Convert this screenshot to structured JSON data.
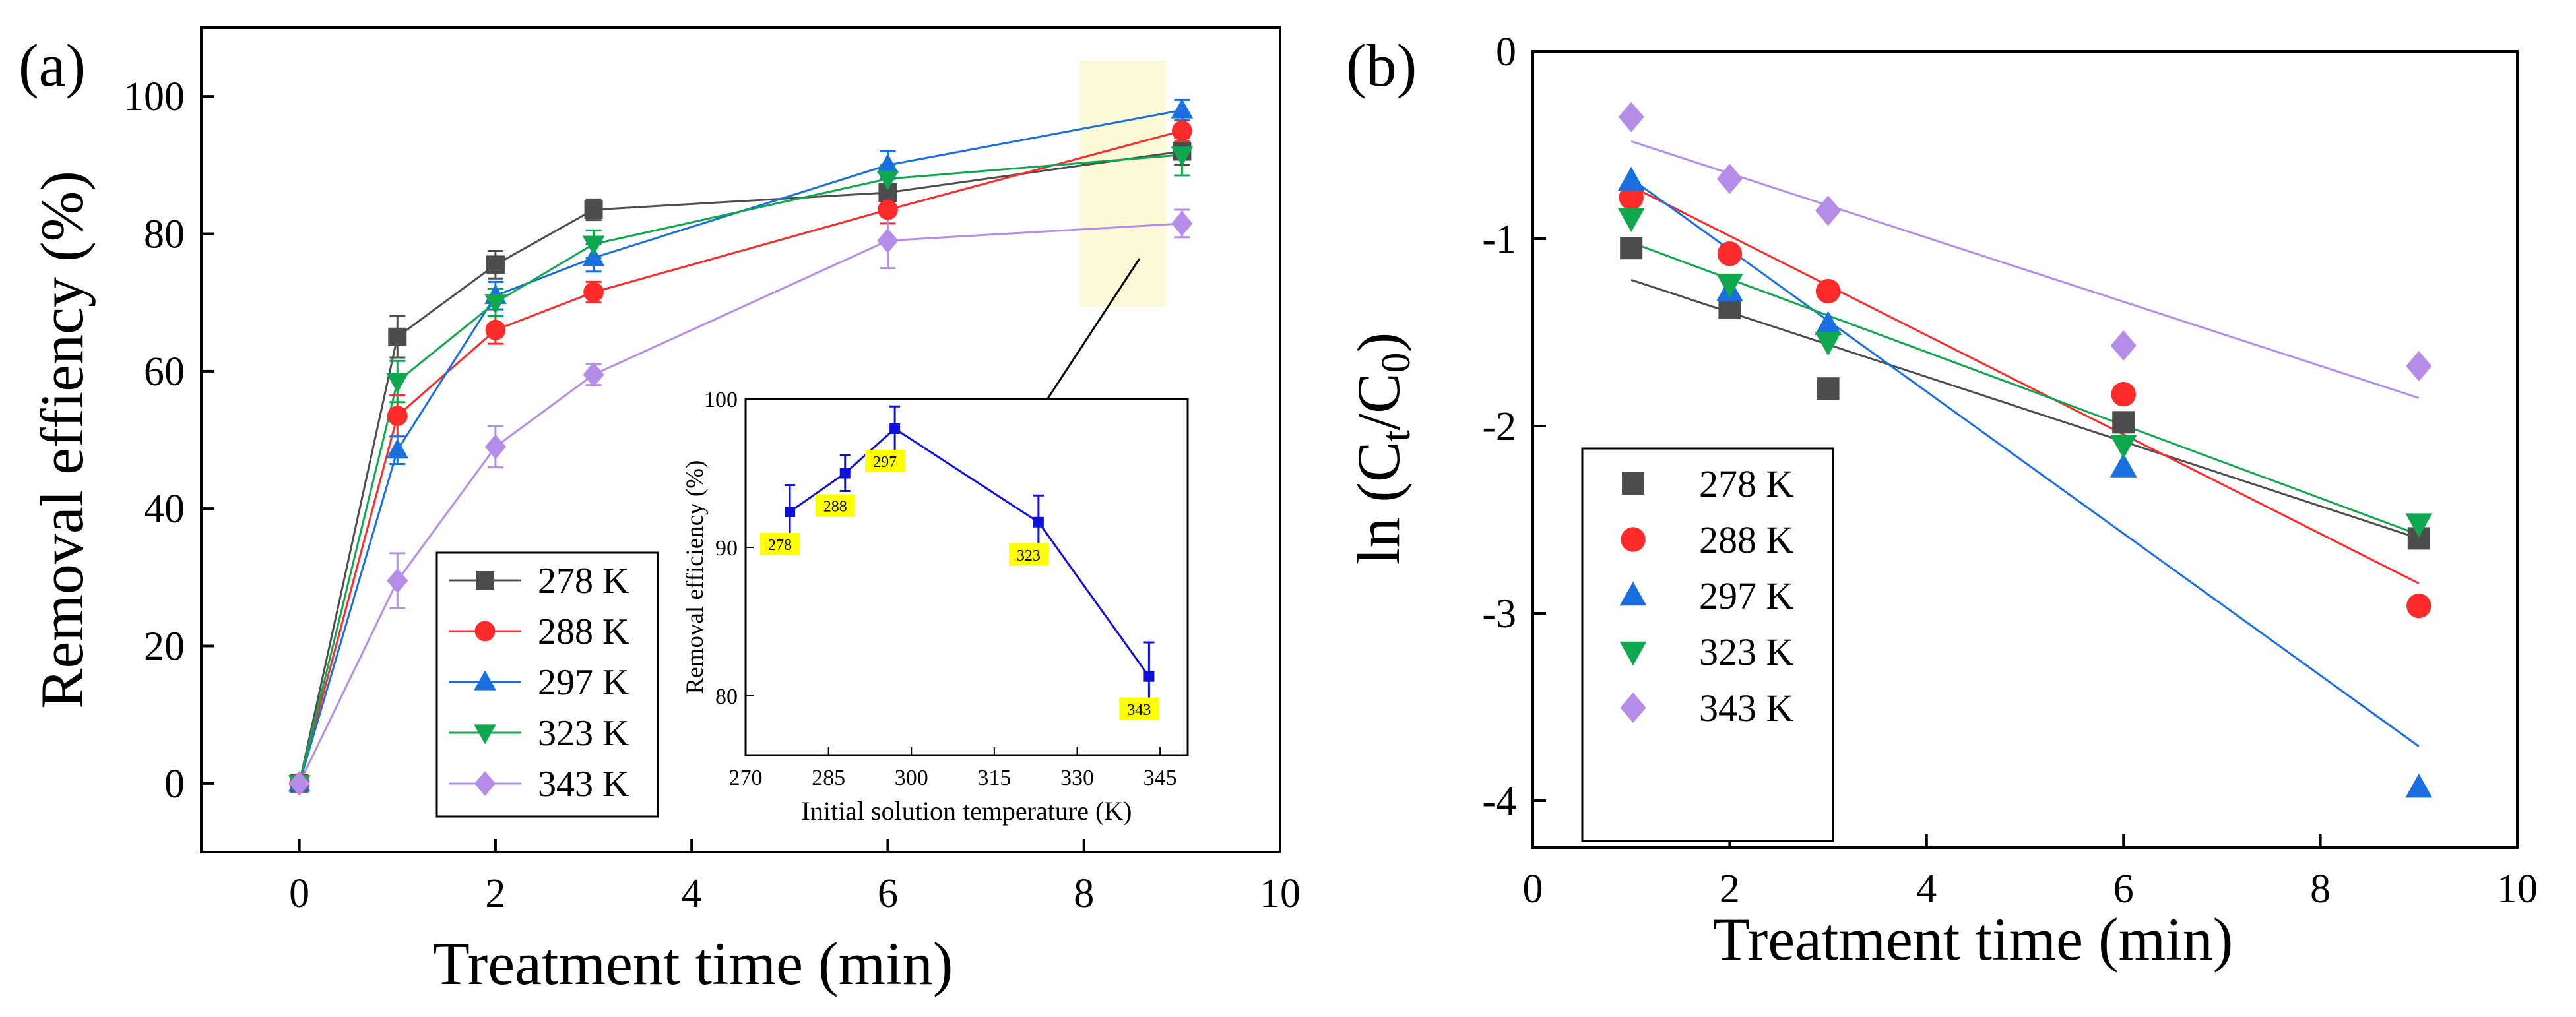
{
  "colors": {
    "278 K": "#4d4d4d",
    "288 K": "#ff2a2a",
    "297 K": "#1a6fe0",
    "323 K": "#0fa84f",
    "343 K": "#b58ce8",
    "inset": "#1010dd",
    "highlight_box": "#fbf7c8",
    "inset_label_bg": "#ffff00"
  },
  "chart_data": [
    {
      "type": "line",
      "panel_label": "(a)",
      "xlabel": "Treatment time (min)",
      "ylabel": "Removal effiency (%)",
      "xlim": [
        -1,
        10
      ],
      "ylim": [
        -10,
        110
      ],
      "xticks": [
        0,
        2,
        4,
        6,
        8,
        10
      ],
      "yticks": [
        0,
        20,
        40,
        60,
        80,
        100
      ],
      "legend_position": "bottom-left",
      "x": [
        0,
        1,
        2,
        3,
        6,
        9
      ],
      "series": [
        {
          "name": "278 K",
          "marker": "square",
          "values": [
            0,
            65,
            75.5,
            83.5,
            86,
            92
          ],
          "errors": [
            0,
            3,
            2,
            1.5,
            2,
            2
          ]
        },
        {
          "name": "288 K",
          "marker": "circle",
          "values": [
            0,
            53.5,
            66,
            71.5,
            83.5,
            95
          ],
          "errors": [
            0,
            3,
            2,
            1.5,
            2,
            1.5
          ]
        },
        {
          "name": "297 K",
          "marker": "triangle-up",
          "values": [
            0,
            48.5,
            71,
            76.5,
            90,
            98
          ],
          "errors": [
            0,
            2,
            2,
            2,
            2,
            1.5
          ]
        },
        {
          "name": "323 K",
          "marker": "triangle-down",
          "values": [
            0,
            58.5,
            70,
            78.5,
            88,
            91.5
          ],
          "errors": [
            0,
            3,
            2,
            2,
            2,
            3
          ]
        },
        {
          "name": "343 K",
          "marker": "diamond",
          "values": [
            0,
            29.5,
            49,
            59.5,
            79,
            81.5
          ],
          "errors": [
            0,
            4,
            3,
            1.5,
            4,
            2
          ]
        }
      ],
      "inset": {
        "type": "line",
        "xlabel": "Initial solution temperature (K)",
        "ylabel": "Removal efficiency (%)",
        "xlim": [
          270,
          350
        ],
        "ylim": [
          76,
          100
        ],
        "xticks": [
          270,
          285,
          300,
          315,
          330,
          345
        ],
        "yticks": [
          80,
          90,
          100
        ],
        "x": [
          278,
          288,
          297,
          323,
          343
        ],
        "values": [
          92.4,
          95,
          98,
          91.7,
          81.3
        ],
        "errors": [
          1.8,
          1.2,
          1.5,
          1.8,
          2.3
        ],
        "point_labels": [
          "278",
          "288",
          "297",
          "323",
          "343"
        ]
      }
    },
    {
      "type": "scatter",
      "panel_label": "(b)",
      "xlabel": "Treatment time (min)",
      "ylabel_parts": {
        "prefix": "ln (C",
        "sub1": "t",
        "mid": "/C",
        "sub2": "0",
        "suffix": ")"
      },
      "xlim": [
        0,
        10
      ],
      "ylim": [
        -4.25,
        0
      ],
      "xticks": [
        0,
        2,
        4,
        6,
        8,
        10
      ],
      "yticks": [
        0,
        -1,
        -2,
        -3,
        -4
      ],
      "legend_position": "bottom-left",
      "x": [
        1,
        2,
        3,
        6,
        9
      ],
      "series": [
        {
          "name": "278 K",
          "marker": "square",
          "values": [
            -1.05,
            -1.37,
            -1.8,
            -1.98,
            -2.6
          ],
          "fit": [
            -1.22,
            -2.6
          ]
        },
        {
          "name": "288 K",
          "marker": "circle",
          "values": [
            -0.78,
            -1.08,
            -1.28,
            -1.83,
            -2.96
          ],
          "fit": [
            -0.72,
            -2.84
          ]
        },
        {
          "name": "297 K",
          "marker": "triangle-up",
          "values": [
            -0.69,
            -1.28,
            -1.46,
            -2.22,
            -3.93
          ],
          "fit": [
            -0.68,
            -3.71
          ]
        },
        {
          "name": "323 K",
          "marker": "triangle-down",
          "values": [
            -0.89,
            -1.24,
            -1.55,
            -2.1,
            -2.52
          ],
          "fit": [
            -1.02,
            -2.58
          ]
        },
        {
          "name": "343 K",
          "marker": "diamond",
          "values": [
            -0.35,
            -0.68,
            -0.85,
            -1.57,
            -1.68
          ],
          "fit": [
            -0.48,
            -1.85
          ]
        }
      ]
    }
  ]
}
